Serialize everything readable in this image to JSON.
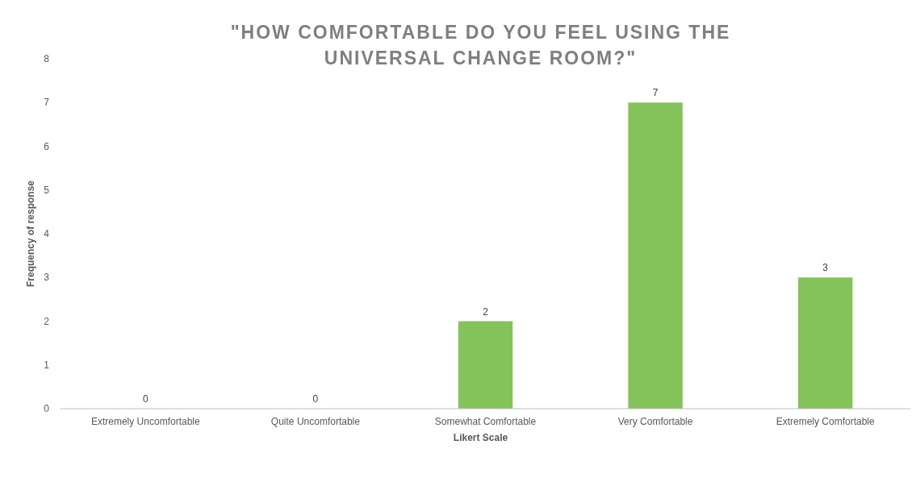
{
  "chart_data": {
    "type": "bar",
    "title": "\"HOW COMFORTABLE DO YOU FEEL USING THE UNIVERSAL CHANGE ROOM?\"",
    "xlabel": "Likert Scale",
    "ylabel": "Frequency of response",
    "categories": [
      "Extremely Uncomfortable",
      "Quite Uncomfortable",
      "Somewhat Comfortable",
      "Very Comfortable",
      "Extremely Comfortable"
    ],
    "values": [
      0,
      0,
      2,
      7,
      3
    ],
    "color": "#84c25a",
    "ylim": [
      0,
      8
    ],
    "yticks": [
      0,
      1,
      2,
      3,
      4,
      5,
      6,
      7,
      8
    ],
    "grid": false,
    "data_labels": true
  }
}
